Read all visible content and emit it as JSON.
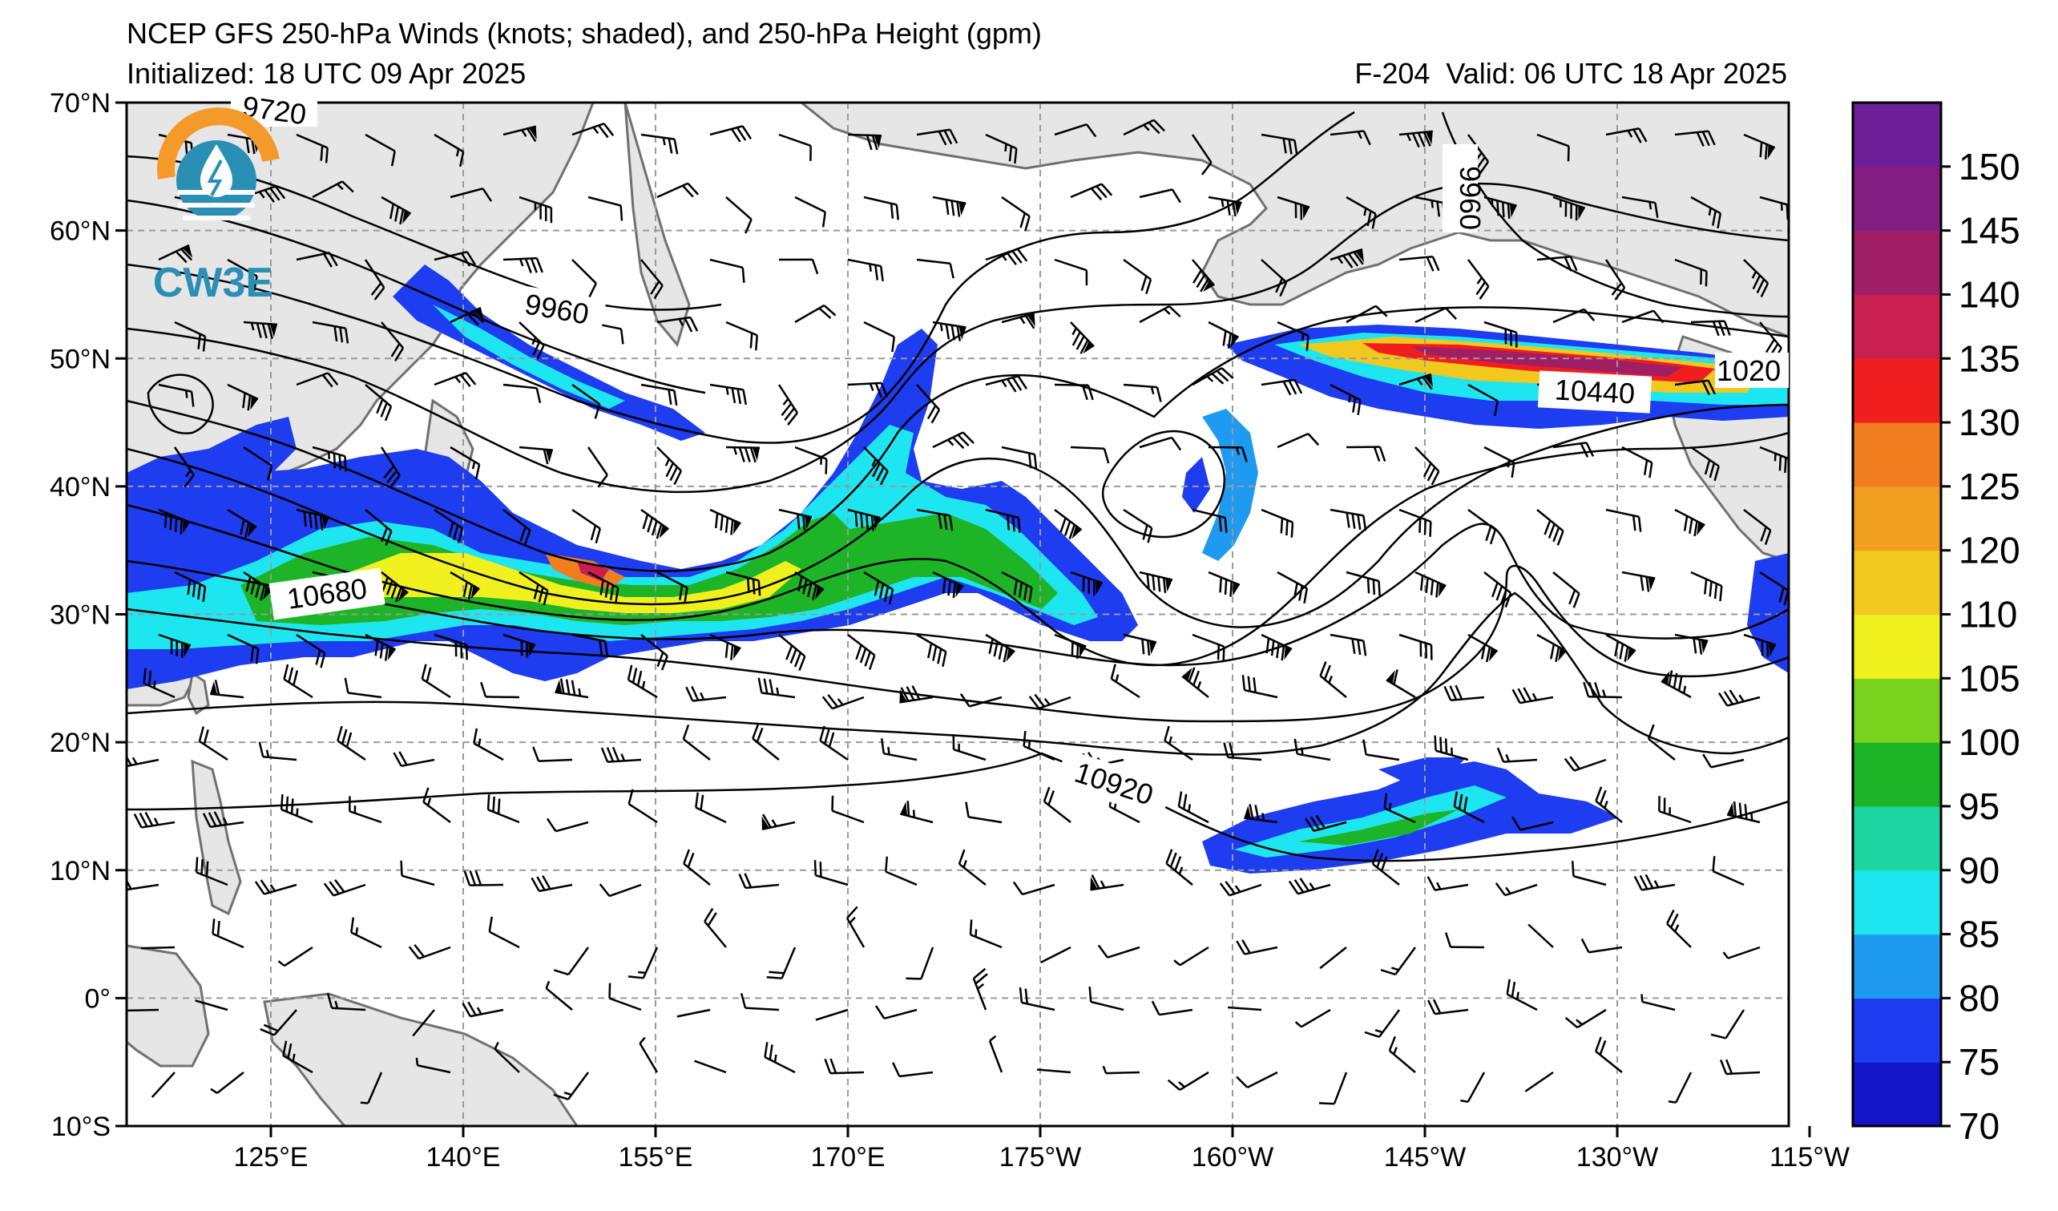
{
  "header": {
    "title": "NCEP GFS 250-hPa Winds (knots; shaded), and 250-hPa Height (gpm)",
    "initialized": "Initialized: 18 UTC 09 Apr 2025",
    "forecast_hour": "F-204",
    "valid": "Valid: 06 UTC 18 Apr 2025"
  },
  "logo": {
    "text": "CW3E",
    "icon": "water-drop-sun-logo-icon"
  },
  "map": {
    "lat_labels": [
      "70°N",
      "60°N",
      "50°N",
      "40°N",
      "30°N",
      "20°N",
      "10°N",
      "0°",
      "10°S"
    ],
    "lon_labels": [
      "125°E",
      "140°E",
      "155°E",
      "170°E",
      "175°W",
      "160°W",
      "145°W",
      "130°W",
      "115°W"
    ],
    "contour_labels": [
      "9720",
      "9960",
      "9960",
      "10680",
      "10920",
      "10440",
      "1020"
    ]
  },
  "colorbar": {
    "tick_labels": [
      "70",
      "75",
      "80",
      "85",
      "90",
      "95",
      "100",
      "105",
      "110",
      "120",
      "125",
      "130",
      "135",
      "140",
      "145",
      "150"
    ],
    "colors": [
      "#1414c8",
      "#1e3cf0",
      "#1e9bf0",
      "#1ee6f0",
      "#1ed7a0",
      "#1eb428",
      "#78d21e",
      "#f0f01e",
      "#f0c81e",
      "#f0a01e",
      "#f07d1e",
      "#f01e1e",
      "#c81e50",
      "#a01e64",
      "#821e82",
      "#6e1e96"
    ]
  },
  "colors": {
    "land": "#e6e6e6",
    "coast": "#707070",
    "grid": "#9a9a9a",
    "contour": "#000000",
    "jet_low": "#1e3cf0",
    "jet_high": "#f01e1e"
  }
}
